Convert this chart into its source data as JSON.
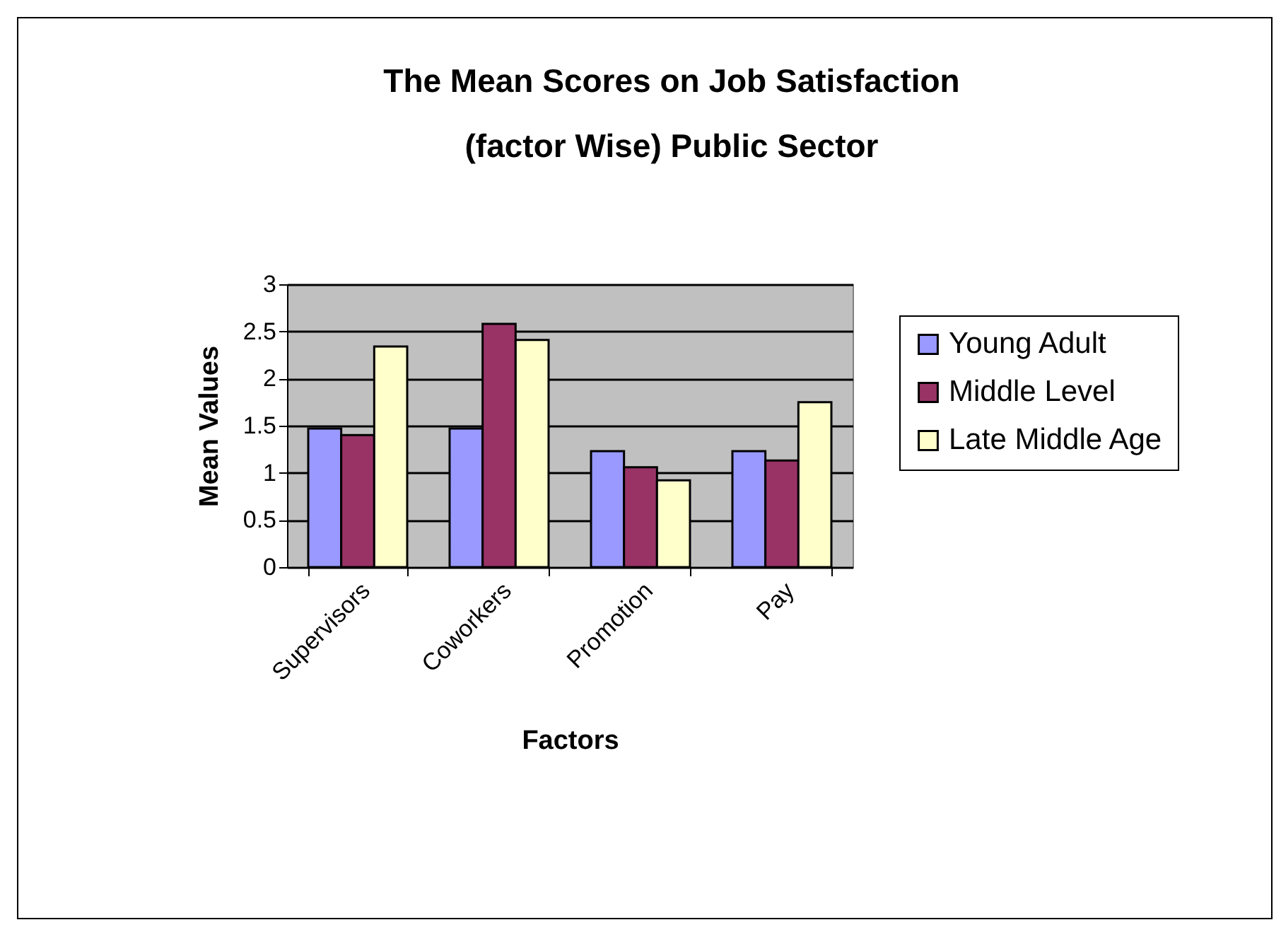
{
  "chart_data": {
    "type": "bar",
    "title": "The Mean Scores on Job Satisfaction (factor Wise) Public Sector",
    "xlabel": "Factors",
    "ylabel": "Mean Values",
    "categories": [
      "Supervisors",
      "Coworkers",
      "Promotion",
      "Pay"
    ],
    "series": [
      {
        "name": "Young Adult",
        "color": "#9999ff",
        "values": [
          1.47,
          1.47,
          1.23,
          1.23
        ]
      },
      {
        "name": "Middle Level",
        "color": "#993366",
        "values": [
          1.4,
          2.58,
          1.06,
          1.13
        ]
      },
      {
        "name": "Late Middle Age",
        "color": "#ffffcc",
        "values": [
          2.34,
          2.41,
          0.92,
          1.75
        ]
      }
    ],
    "ylim": [
      0,
      3
    ],
    "yticks": [
      0,
      0.5,
      1,
      1.5,
      2,
      2.5,
      3
    ],
    "grid": "y",
    "legend": "right"
  }
}
